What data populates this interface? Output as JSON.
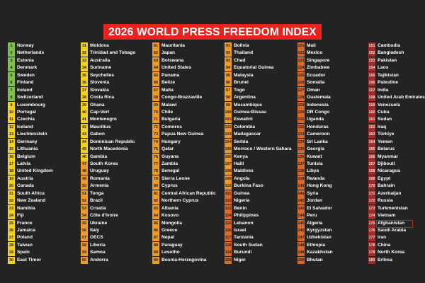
{
  "title": "2026 WORLD PRESS FREEDOM INDEX",
  "colors": {
    "background": "#232323",
    "title_bg": "#e8231d",
    "band_good": "#7ec04a",
    "band_satisfactory": "#f2d21e",
    "band_problematic": "#eb9b2e",
    "band_difficult": "#d86a2d",
    "band_very_serious": "#a42a27"
  },
  "columns": [
    {
      "band": "mixed",
      "entries": [
        {
          "rank": "1",
          "name": "Norway"
        },
        {
          "rank": "2",
          "name": "Netherlands"
        },
        {
          "rank": "3",
          "name": "Estonia"
        },
        {
          "rank": "4",
          "name": "Denmark"
        },
        {
          "rank": "5",
          "name": "Sweden"
        },
        {
          "rank": "6",
          "name": "Finland"
        },
        {
          "rank": "7",
          "name": "Ireland"
        },
        {
          "rank": "8",
          "name": "Switzerland"
        },
        {
          "rank": "9",
          "name": "Luxembourg"
        },
        {
          "rank": "10",
          "name": "Portugal"
        },
        {
          "rank": "11",
          "name": "Czechia"
        },
        {
          "rank": "12",
          "name": "Iceland"
        },
        {
          "rank": "13",
          "name": "Liechtenstein"
        },
        {
          "rank": "14",
          "name": "Germany"
        },
        {
          "rank": "15",
          "name": "Lithuania"
        },
        {
          "rank": "16",
          "name": "Belgium"
        },
        {
          "rank": "17",
          "name": "Latvia"
        },
        {
          "rank": "18",
          "name": "United Kingdom"
        },
        {
          "rank": "19",
          "name": "Austria"
        },
        {
          "rank": "20",
          "name": "Canada"
        },
        {
          "rank": "21",
          "name": "South Africa"
        },
        {
          "rank": "22",
          "name": "New Zealand"
        },
        {
          "rank": "23",
          "name": "Namibia"
        },
        {
          "rank": "24",
          "name": "Fiji"
        },
        {
          "rank": "25",
          "name": "France"
        },
        {
          "rank": "26",
          "name": "Jamaica"
        },
        {
          "rank": "27",
          "name": "Poland"
        },
        {
          "rank": "28",
          "name": "Taiwan"
        },
        {
          "rank": "29",
          "name": "Spain"
        },
        {
          "rank": "30",
          "name": "East Timor"
        }
      ]
    },
    {
      "band": "mixed",
      "entries": [
        {
          "rank": "31",
          "name": "Moldova"
        },
        {
          "rank": "32",
          "name": "Trinidad and Tobago"
        },
        {
          "rank": "33",
          "name": "Australia"
        },
        {
          "rank": "34",
          "name": "Suriname"
        },
        {
          "rank": "35",
          "name": "Seychelles"
        },
        {
          "rank": "36",
          "name": "Slovenia"
        },
        {
          "rank": "37",
          "name": "Slovakia"
        },
        {
          "rank": "38",
          "name": "Costa Rica"
        },
        {
          "rank": "39",
          "name": "Ghana"
        },
        {
          "rank": "40",
          "name": "Cap-Vert"
        },
        {
          "rank": "41",
          "name": "Montenegro"
        },
        {
          "rank": "42",
          "name": "Mauritius"
        },
        {
          "rank": "43",
          "name": "Gabon"
        },
        {
          "rank": "44",
          "name": "Dominican Republic"
        },
        {
          "rank": "45",
          "name": "North Macedonia"
        },
        {
          "rank": "46",
          "name": "Gambia"
        },
        {
          "rank": "47",
          "name": "South Korea"
        },
        {
          "rank": "48",
          "name": "Uruguay"
        },
        {
          "rank": "49",
          "name": "Romania"
        },
        {
          "rank": "50",
          "name": "Armenia"
        },
        {
          "rank": "51",
          "name": "Tonga"
        },
        {
          "rank": "52",
          "name": "Brazil"
        },
        {
          "rank": "53",
          "name": "Croatia"
        },
        {
          "rank": "54",
          "name": "Côte d'Ivoire"
        },
        {
          "rank": "55",
          "name": "Ukraine"
        },
        {
          "rank": "56",
          "name": "Italy"
        },
        {
          "rank": "57",
          "name": "OECS"
        },
        {
          "rank": "58",
          "name": "Liberia"
        },
        {
          "rank": "59",
          "name": "Samoa"
        },
        {
          "rank": "60",
          "name": "Andorra"
        }
      ]
    },
    {
      "band": "problematic",
      "entries": [
        {
          "rank": "61",
          "name": "Mauritania"
        },
        {
          "rank": "62",
          "name": "Japan"
        },
        {
          "rank": "63",
          "name": "Botswana"
        },
        {
          "rank": "64",
          "name": "United States"
        },
        {
          "rank": "65",
          "name": "Panama"
        },
        {
          "rank": "66",
          "name": "Belize"
        },
        {
          "rank": "67",
          "name": "Malta"
        },
        {
          "rank": "68",
          "name": "Congo-Brazzaville"
        },
        {
          "rank": "69",
          "name": "Malawi"
        },
        {
          "rank": "70",
          "name": "Chile"
        },
        {
          "rank": "71",
          "name": "Bulgaria"
        },
        {
          "rank": "72",
          "name": "Comoros"
        },
        {
          "rank": "73",
          "name": "Papua New Guinea"
        },
        {
          "rank": "74",
          "name": "Hungary"
        },
        {
          "rank": "75",
          "name": "Qatar"
        },
        {
          "rank": "76",
          "name": "Guyana"
        },
        {
          "rank": "77",
          "name": "Zambia"
        },
        {
          "rank": "78",
          "name": "Senegal"
        },
        {
          "rank": "79",
          "name": "Sierra Leone"
        },
        {
          "rank": "80",
          "name": "Cyprus"
        },
        {
          "rank": "81",
          "name": "Central African Republic"
        },
        {
          "rank": "82",
          "name": "Northern Cyprus"
        },
        {
          "rank": "83",
          "name": "Albania"
        },
        {
          "rank": "84",
          "name": "Kosovo"
        },
        {
          "rank": "85",
          "name": "Mongolia"
        },
        {
          "rank": "86",
          "name": "Greece"
        },
        {
          "rank": "87",
          "name": "Nepal"
        },
        {
          "rank": "88",
          "name": "Paraguay"
        },
        {
          "rank": "89",
          "name": "Lesotho"
        },
        {
          "rank": "90",
          "name": "Bosnia-Herzegovina"
        }
      ]
    },
    {
      "band": "problematic",
      "entries": [
        {
          "rank": "91",
          "name": "Bolivia"
        },
        {
          "rank": "92",
          "name": "Thailand"
        },
        {
          "rank": "93",
          "name": "Chad"
        },
        {
          "rank": "94",
          "name": "Equatorial Guinea"
        },
        {
          "rank": "95",
          "name": "Malaysia"
        },
        {
          "rank": "96",
          "name": "Brunei"
        },
        {
          "rank": "97",
          "name": "Togo"
        },
        {
          "rank": "98",
          "name": "Argentina"
        },
        {
          "rank": "99",
          "name": "Mozambique"
        },
        {
          "rank": "100",
          "name": "Guinea-Bissau"
        },
        {
          "rank": "101",
          "name": "Eswatini"
        },
        {
          "rank": "102",
          "name": "Colombia"
        },
        {
          "rank": "103",
          "name": "Madagascar"
        },
        {
          "rank": "104",
          "name": "Serbia"
        },
        {
          "rank": "105",
          "name": "Morroco / Western Sahara"
        },
        {
          "rank": "106",
          "name": "Kenya"
        },
        {
          "rank": "107",
          "name": "Haiti"
        },
        {
          "rank": "108",
          "name": "Maldives"
        },
        {
          "rank": "109",
          "name": "Angola"
        },
        {
          "rank": "110",
          "name": "Burkina Faso"
        },
        {
          "rank": "111",
          "name": "Guinea"
        },
        {
          "rank": "112",
          "name": "Nigeria"
        },
        {
          "rank": "113",
          "name": "Benin"
        },
        {
          "rank": "114",
          "name": "Philippines"
        },
        {
          "rank": "115",
          "name": "Lebanon"
        },
        {
          "rank": "116",
          "name": "Israel"
        },
        {
          "rank": "117",
          "name": "Tanzania"
        },
        {
          "rank": "118",
          "name": "South Sudan"
        },
        {
          "rank": "119",
          "name": "Burundi"
        },
        {
          "rank": "120",
          "name": "Niger"
        }
      ]
    },
    {
      "band": "difficult",
      "entries": [
        {
          "rank": "121",
          "name": "Mali"
        },
        {
          "rank": "122",
          "name": "Mexico"
        },
        {
          "rank": "123",
          "name": "Singapore"
        },
        {
          "rank": "124",
          "name": "Zimbabwe"
        },
        {
          "rank": "125",
          "name": "Ecuador"
        },
        {
          "rank": "126",
          "name": "Somalia"
        },
        {
          "rank": "127",
          "name": "Oman"
        },
        {
          "rank": "128",
          "name": "Guatemala"
        },
        {
          "rank": "129",
          "name": "Indonesia"
        },
        {
          "rank": "130",
          "name": "DR Congo"
        },
        {
          "rank": "131",
          "name": "Uganda"
        },
        {
          "rank": "132",
          "name": "Honduras"
        },
        {
          "rank": "133",
          "name": "Cameroon"
        },
        {
          "rank": "134",
          "name": "Sri Lanka"
        },
        {
          "rank": "135",
          "name": "Georgia"
        },
        {
          "rank": "136",
          "name": "Kuwait"
        },
        {
          "rank": "137",
          "name": "Tunisia"
        },
        {
          "rank": "138",
          "name": "Libya"
        },
        {
          "rank": "139",
          "name": "Rwanda"
        },
        {
          "rank": "140",
          "name": "Hong Kong"
        },
        {
          "rank": "141",
          "name": "Syria"
        },
        {
          "rank": "142",
          "name": "Jordan"
        },
        {
          "rank": "143",
          "name": "El Salvador"
        },
        {
          "rank": "144",
          "name": "Peru"
        },
        {
          "rank": "145",
          "name": "Algeria"
        },
        {
          "rank": "146",
          "name": "Kyrgyzstan"
        },
        {
          "rank": "147",
          "name": "Uzbekistan"
        },
        {
          "rank": "148",
          "name": "Ethiopia"
        },
        {
          "rank": "149",
          "name": "Kazakhstan"
        },
        {
          "rank": "150",
          "name": "Bhutan"
        }
      ]
    },
    {
      "band": "very_serious",
      "entries": [
        {
          "rank": "151",
          "name": "Cambodia"
        },
        {
          "rank": "152",
          "name": "Bangladesh"
        },
        {
          "rank": "153",
          "name": "Pakistan"
        },
        {
          "rank": "154",
          "name": "Laos"
        },
        {
          "rank": "155",
          "name": "Tajikistan"
        },
        {
          "rank": "156",
          "name": "Palestine"
        },
        {
          "rank": "157",
          "name": "India"
        },
        {
          "rank": "158",
          "name": "United Arab Emirates"
        },
        {
          "rank": "159",
          "name": "Venezuela"
        },
        {
          "rank": "160",
          "name": "Cuba"
        },
        {
          "rank": "161",
          "name": "Sudan"
        },
        {
          "rank": "162",
          "name": "Iraq"
        },
        {
          "rank": "163",
          "name": "Türkiye"
        },
        {
          "rank": "164",
          "name": "Yemen"
        },
        {
          "rank": "165",
          "name": "Belarus"
        },
        {
          "rank": "166",
          "name": "Myanmar"
        },
        {
          "rank": "167",
          "name": "Djibouti"
        },
        {
          "rank": "168",
          "name": "Nicaragua"
        },
        {
          "rank": "169",
          "name": "Egypt"
        },
        {
          "rank": "170",
          "name": "Bahrain"
        },
        {
          "rank": "171",
          "name": "Azerbaijan"
        },
        {
          "rank": "172",
          "name": "Russia"
        },
        {
          "rank": "173",
          "name": "Turkmenistan"
        },
        {
          "rank": "174",
          "name": "Vietnam"
        },
        {
          "rank": "175",
          "name": "Afghanistan",
          "highlighted": true
        },
        {
          "rank": "176",
          "name": "Saudi Arabia"
        },
        {
          "rank": "177",
          "name": "Iran"
        },
        {
          "rank": "178",
          "name": "China"
        },
        {
          "rank": "179",
          "name": "North Korea"
        },
        {
          "rank": "180",
          "name": "Eritrea"
        }
      ]
    }
  ]
}
